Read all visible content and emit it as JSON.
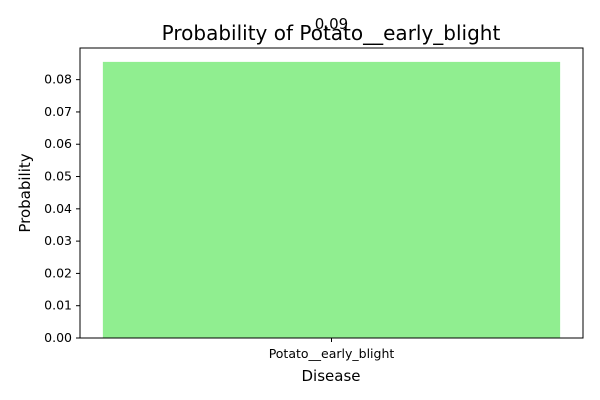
{
  "chart_data": {
    "type": "bar",
    "title": "Probability of Potato__early_blight",
    "xlabel": "Disease",
    "ylabel": "Probability",
    "categories": [
      "Potato__early_blight"
    ],
    "values": [
      0.0855
    ],
    "value_labels": [
      "0.09"
    ],
    "ylim": [
      0,
      0.0898
    ],
    "yticks": [
      {
        "value": 0.0,
        "label": "0.00"
      },
      {
        "value": 0.01,
        "label": "0.01"
      },
      {
        "value": 0.02,
        "label": "0.02"
      },
      {
        "value": 0.03,
        "label": "0.03"
      },
      {
        "value": 0.04,
        "label": "0.04"
      },
      {
        "value": 0.05,
        "label": "0.05"
      },
      {
        "value": 0.06,
        "label": "0.06"
      },
      {
        "value": 0.07,
        "label": "0.07"
      },
      {
        "value": 0.08,
        "label": "0.08"
      }
    ],
    "grid": false,
    "bar_color": "#90ee90"
  }
}
